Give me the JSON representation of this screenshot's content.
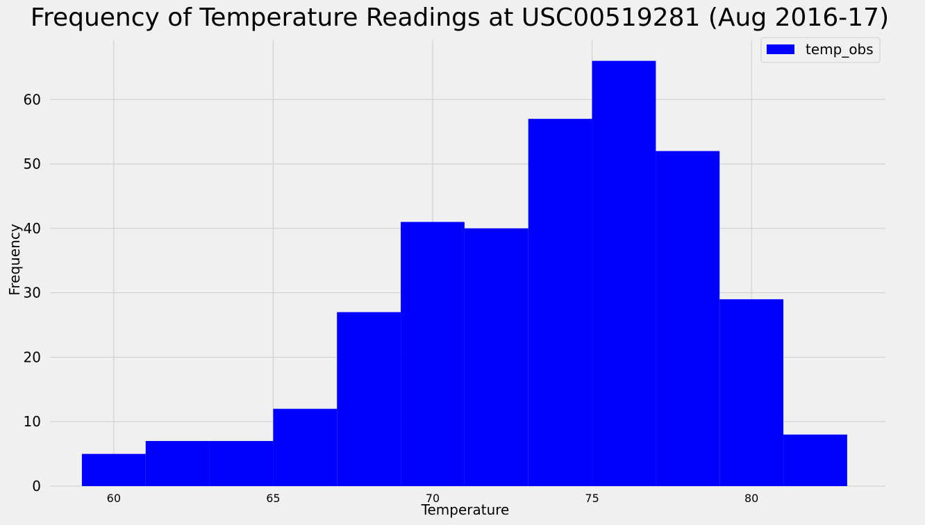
{
  "chart_data": {
    "type": "bar",
    "title": "Frequency of Temperature Readings at USC00519281 (Aug 2016-17)",
    "xlabel": "Temperature",
    "ylabel": "Frequency",
    "bins": [
      {
        "start": 59,
        "end": 61,
        "count": 5
      },
      {
        "start": 61,
        "end": 63,
        "count": 7
      },
      {
        "start": 63,
        "end": 65,
        "count": 7
      },
      {
        "start": 65,
        "end": 67,
        "count": 12
      },
      {
        "start": 67,
        "end": 69,
        "count": 27
      },
      {
        "start": 69,
        "end": 71,
        "count": 41
      },
      {
        "start": 71,
        "end": 73,
        "count": 40
      },
      {
        "start": 73,
        "end": 75,
        "count": 57
      },
      {
        "start": 75,
        "end": 77,
        "count": 66
      },
      {
        "start": 77,
        "end": 79,
        "count": 52
      },
      {
        "start": 79,
        "end": 81,
        "count": 29
      },
      {
        "start": 81,
        "end": 83,
        "count": 8
      }
    ],
    "xlim": [
      58,
      84.2
    ],
    "ylim": [
      0,
      69.3
    ],
    "xticks": [
      60,
      65,
      70,
      75,
      80
    ],
    "yticks": [
      0,
      10,
      20,
      30,
      40,
      50,
      60
    ],
    "series": [
      {
        "name": "temp_obs",
        "color": "#0000ff"
      }
    ],
    "legend": "upper right",
    "grid": true
  }
}
